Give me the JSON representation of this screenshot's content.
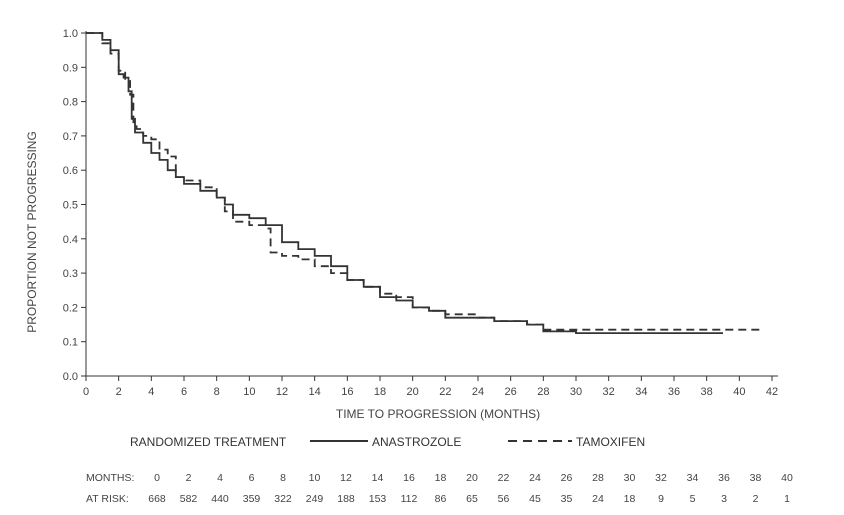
{
  "chart_data": {
    "type": "line",
    "xlabel": "TIME TO PROGRESSION (MONTHS)",
    "ylabel": "PROPORTION NOT PROGRESSING",
    "xlim": [
      0,
      42
    ],
    "ylim": [
      0.0,
      1.0
    ],
    "x_ticks": [
      "0",
      "2",
      "4",
      "6",
      "8",
      "10",
      "12",
      "14",
      "16",
      "18",
      "20",
      "22",
      "24",
      "26",
      "28",
      "30",
      "32",
      "34",
      "36",
      "38",
      "40",
      "42"
    ],
    "y_ticks": [
      "0.0",
      "0.1",
      "0.2",
      "0.3",
      "0.4",
      "0.5",
      "0.6",
      "0.7",
      "0.8",
      "0.9",
      "1.0"
    ],
    "grid": false,
    "legend": {
      "title": "RANDOMIZED TREATMENT",
      "position": "bottom"
    },
    "series": [
      {
        "name": "ANASTROZOLE",
        "style": "solid",
        "color": "#333333",
        "points": [
          [
            0,
            1.0
          ],
          [
            0.7,
            1.0
          ],
          [
            1.0,
            0.98
          ],
          [
            1.5,
            0.95
          ],
          [
            2.0,
            0.88
          ],
          [
            2.3,
            0.87
          ],
          [
            2.6,
            0.83
          ],
          [
            2.8,
            0.75
          ],
          [
            3.0,
            0.71
          ],
          [
            3.5,
            0.68
          ],
          [
            4.0,
            0.65
          ],
          [
            4.5,
            0.63
          ],
          [
            5.0,
            0.6
          ],
          [
            5.5,
            0.58
          ],
          [
            6.0,
            0.56
          ],
          [
            7.0,
            0.54
          ],
          [
            8.0,
            0.52
          ],
          [
            8.5,
            0.5
          ],
          [
            9.0,
            0.47
          ],
          [
            10.0,
            0.46
          ],
          [
            11.0,
            0.44
          ],
          [
            12.0,
            0.39
          ],
          [
            13.0,
            0.37
          ],
          [
            14.0,
            0.35
          ],
          [
            15.0,
            0.32
          ],
          [
            16.0,
            0.28
          ],
          [
            17.0,
            0.26
          ],
          [
            18.0,
            0.23
          ],
          [
            19.0,
            0.22
          ],
          [
            20.0,
            0.2
          ],
          [
            21.0,
            0.19
          ],
          [
            22.0,
            0.17
          ],
          [
            24.0,
            0.17
          ],
          [
            25.0,
            0.16
          ],
          [
            27.0,
            0.15
          ],
          [
            28.0,
            0.13
          ],
          [
            30.0,
            0.125
          ],
          [
            32.0,
            0.125
          ],
          [
            35.0,
            0.125
          ],
          [
            39.0,
            0.125
          ]
        ]
      },
      {
        "name": "TAMOXIFEN",
        "style": "dashed",
        "color": "#333333",
        "points": [
          [
            0,
            1.0
          ],
          [
            0.7,
            1.0
          ],
          [
            1.0,
            0.97
          ],
          [
            1.5,
            0.94
          ],
          [
            2.0,
            0.89
          ],
          [
            2.4,
            0.86
          ],
          [
            2.7,
            0.82
          ],
          [
            2.9,
            0.74
          ],
          [
            3.1,
            0.72
          ],
          [
            3.5,
            0.7
          ],
          [
            4.0,
            0.69
          ],
          [
            4.5,
            0.66
          ],
          [
            5.0,
            0.64
          ],
          [
            5.5,
            0.58
          ],
          [
            6.0,
            0.57
          ],
          [
            7.0,
            0.55
          ],
          [
            8.0,
            0.52
          ],
          [
            8.5,
            0.48
          ],
          [
            9.0,
            0.45
          ],
          [
            10.0,
            0.44
          ],
          [
            11.0,
            0.43
          ],
          [
            11.3,
            0.36
          ],
          [
            12.0,
            0.35
          ],
          [
            13.0,
            0.34
          ],
          [
            14.0,
            0.32
          ],
          [
            15.0,
            0.3
          ],
          [
            16.0,
            0.28
          ],
          [
            17.0,
            0.26
          ],
          [
            18.0,
            0.24
          ],
          [
            19.0,
            0.23
          ],
          [
            20.0,
            0.2
          ],
          [
            21.0,
            0.19
          ],
          [
            22.0,
            0.18
          ],
          [
            24.0,
            0.17
          ],
          [
            25.0,
            0.16
          ],
          [
            27.0,
            0.15
          ],
          [
            28.0,
            0.135
          ],
          [
            30.0,
            0.135
          ],
          [
            32.0,
            0.135
          ],
          [
            36.0,
            0.135
          ],
          [
            40.0,
            0.135
          ],
          [
            41.5,
            0.135
          ]
        ]
      }
    ],
    "at_risk": {
      "label_months": "MONTHS:",
      "label_at_risk": "AT RISK:",
      "months": [
        "0",
        "2",
        "4",
        "6",
        "8",
        "10",
        "12",
        "14",
        "16",
        "18",
        "20",
        "22",
        "24",
        "26",
        "28",
        "30",
        "32",
        "34",
        "36",
        "38",
        "40"
      ],
      "counts": [
        "668",
        "582",
        "440",
        "359",
        "322",
        "249",
        "188",
        "153",
        "112",
        "86",
        "65",
        "56",
        "45",
        "35",
        "24",
        "18",
        "9",
        "5",
        "3",
        "2",
        "1"
      ]
    }
  }
}
